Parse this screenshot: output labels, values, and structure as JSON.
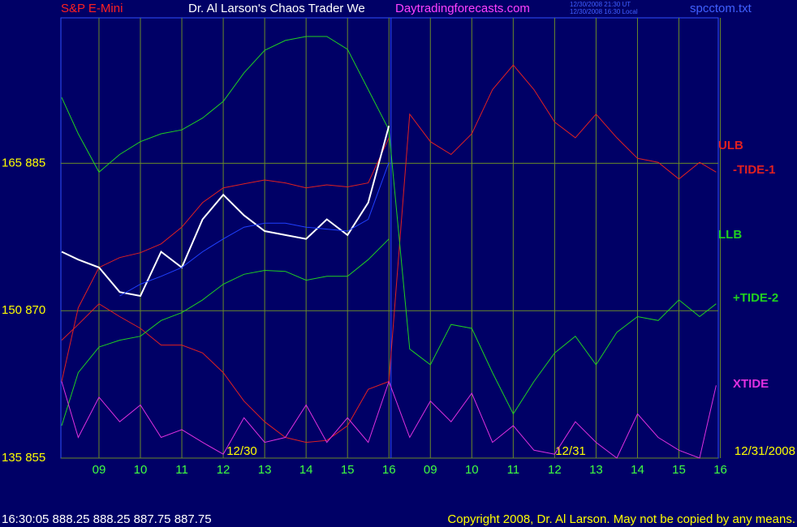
{
  "header": {
    "symbol": "S&P E-Mini",
    "title": "Dr. Al Larson's Chaos Trader We",
    "site": "Daytradingforecasts.com",
    "time_ut": "12/30/2008 21:30 UT",
    "time_local": "12/30/2008 16:30 Local",
    "file": "spcctom.txt"
  },
  "footer": {
    "quote": "16:30:05 888.25 888.25 887.75 887.75",
    "copyright": "Copyright 2008, Dr. Al Larson. May not be copied by any means."
  },
  "chart_data": {
    "type": "line",
    "date_labels": [
      "12/30",
      "12/31",
      "12/31/2008"
    ],
    "x": [
      8.1,
      8.5,
      9,
      9.5,
      10,
      10.5,
      11,
      11.5,
      12,
      12.5,
      13,
      13.5,
      14,
      14.5,
      15,
      15.5,
      16,
      16.5,
      17,
      17.5,
      18,
      18.5,
      19,
      19.5,
      20,
      20.5,
      21,
      21.5,
      22,
      22.5,
      23,
      23.5,
      23.9
    ],
    "xlim": [
      8.08,
      23.95
    ],
    "xticks": [
      {
        "value": 9,
        "label": "09"
      },
      10,
      11,
      12,
      13,
      14,
      15,
      16,
      {
        "value": 17,
        "label": "09"
      },
      {
        "value": 18,
        "label": "10"
      },
      {
        "value": 19,
        "label": "11"
      },
      {
        "value": 20,
        "label": "12"
      },
      {
        "value": 21,
        "label": "13"
      },
      {
        "value": 22,
        "label": "14"
      },
      {
        "value": 23,
        "label": "15"
      },
      {
        "value": 24,
        "label": "16"
      }
    ],
    "ylim": [
      855,
      899.8
    ],
    "yticks": [
      {
        "value": 855,
        "label": "135 855"
      },
      {
        "value": 870,
        "label": "150 870"
      },
      {
        "value": 885,
        "label": "165 885"
      }
    ],
    "grid": true,
    "now_x": 16.05,
    "series": [
      {
        "name": "ULB",
        "color": "#e02020",
        "values": [
          862.8,
          870.3,
          874.4,
          875.4,
          875.9,
          876.8,
          878.5,
          881.0,
          882.5,
          882.9,
          883.3,
          883.0,
          882.5,
          882.8,
          882.6,
          883.0,
          887.6,
          null,
          null,
          null,
          null,
          null,
          null,
          null,
          null,
          null,
          null,
          null,
          null,
          null,
          null,
          null,
          null
        ]
      },
      {
        "name": "-TIDE-1",
        "color": "#e02020",
        "values": [
          867.0,
          868.6,
          870.7,
          869.4,
          868.2,
          866.5,
          866.5,
          865.7,
          863.7,
          860.8,
          858.7,
          857.1,
          856.6,
          856.8,
          858.3,
          862.0,
          862.8,
          890.0,
          887.2,
          885.9,
          888.0,
          892.5,
          895.0,
          892.5,
          889.2,
          887.6,
          890.0,
          887.6,
          885.5,
          885.1,
          883.4,
          885.1,
          884.1
        ]
      },
      {
        "name": "LLB",
        "color": "#20d020",
        "values": [
          858.3,
          863.7,
          866.3,
          867.0,
          867.4,
          869.0,
          869.8,
          871.1,
          872.7,
          873.7,
          874.1,
          874.0,
          873.1,
          873.5,
          873.5,
          875.2,
          877.3,
          null,
          null,
          null,
          null,
          null,
          null,
          null,
          null,
          null,
          null,
          null,
          null,
          null,
          null,
          null,
          null
        ]
      },
      {
        "name": "+TIDE-2",
        "color": "#20d020",
        "values": [
          891.7,
          888.0,
          884.1,
          885.9,
          887.2,
          888.0,
          888.4,
          889.6,
          891.3,
          894.2,
          896.5,
          897.5,
          897.9,
          897.9,
          896.6,
          892.5,
          888.4,
          866.1,
          864.5,
          868.6,
          868.2,
          863.7,
          859.5,
          862.8,
          865.7,
          867.4,
          864.5,
          867.8,
          869.4,
          869.0,
          871.1,
          869.4,
          870.7
        ]
      },
      {
        "name": "XTIDE",
        "color": "#e030e0",
        "values": [
          862.8,
          857.1,
          861.2,
          858.7,
          860.4,
          857.1,
          857.9,
          856.6,
          855.4,
          859.1,
          856.6,
          857.1,
          860.4,
          856.6,
          859.1,
          856.6,
          862.8,
          857.1,
          860.8,
          858.7,
          861.6,
          856.6,
          858.3,
          855.8,
          855.4,
          858.7,
          856.6,
          855.0,
          859.5,
          857.1,
          855.8,
          855.0,
          862.4
        ]
      },
      {
        "color": "#ffffff",
        "values": [
          876.0,
          875.2,
          874.4,
          871.9,
          871.5,
          876.0,
          874.4,
          879.3,
          881.8,
          879.7,
          878.1,
          877.7,
          877.3,
          879.3,
          877.7,
          881.0,
          888.8,
          null,
          null,
          null,
          null,
          null,
          null,
          null,
          null,
          null,
          null,
          null,
          null,
          null,
          null,
          null,
          null
        ]
      },
      {
        "color": "#2040ff",
        "values": [
          null,
          null,
          null,
          871.5,
          872.7,
          873.5,
          874.4,
          876.0,
          877.3,
          878.5,
          878.9,
          878.9,
          878.5,
          878.3,
          878.1,
          879.3,
          885.1,
          null,
          null,
          null,
          null,
          null,
          null,
          null,
          null,
          null,
          null,
          null,
          null,
          null,
          null,
          null,
          null
        ]
      }
    ]
  }
}
